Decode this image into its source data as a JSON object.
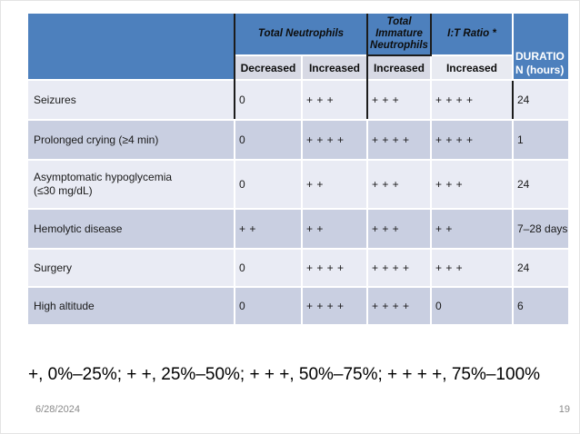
{
  "colors": {
    "header_blue": "#4d80bd",
    "subheader_bg": "#d7d9e4",
    "subheader_bg_light": "#e8eaf1",
    "row_band_light": "#e9ebf4",
    "row_band_dark": "#c9cfe1",
    "rule_black": "#1c1c1c",
    "footer_gray": "#8a8a8a"
  },
  "table": {
    "group_headers": {
      "total_neutrophils": "Total Neutrophils",
      "total_immature_neutrophils": "Total Immature Neutrophils",
      "it_ratio": "I:T Ratio *",
      "duration": "DURATIO\nN (hours)"
    },
    "subheaders": {
      "col1": "Decreased",
      "col2": "Increased",
      "col3": "Increased",
      "col4": "Increased"
    },
    "rows": [
      {
        "label": "Seizures",
        "cells": [
          "0",
          "+ + +",
          "+ + +",
          "+ + + +",
          "24"
        ]
      },
      {
        "label": "Prolonged crying (≥4 min)",
        "cells": [
          "0",
          "+ + + +",
          "+ + + +",
          "+ + + +",
          "1"
        ]
      },
      {
        "label": "Asymptomatic hypoglycemia (≤30 mg/dL)",
        "cells": [
          "0",
          "+ +",
          "+ + +",
          "+ + +",
          "24"
        ]
      },
      {
        "label": "Hemolytic disease",
        "cells": [
          "+ +",
          "+ +",
          "+ + +",
          "+ +",
          "7–28 days"
        ]
      },
      {
        "label": "Surgery",
        "cells": [
          "0",
          "+ + + +",
          "+ + + +",
          "+ + +",
          "24"
        ]
      },
      {
        "label": "High altitude",
        "cells": [
          "0",
          "+ + + +",
          "+ + + +",
          "0",
          "6"
        ]
      }
    ]
  },
  "legend": "+, 0%–25%; + +, 25%–50%; + + +, 50%–75%; + + + +, 75%–100%",
  "footer": {
    "date": "6/28/2024",
    "page_number": "19"
  }
}
